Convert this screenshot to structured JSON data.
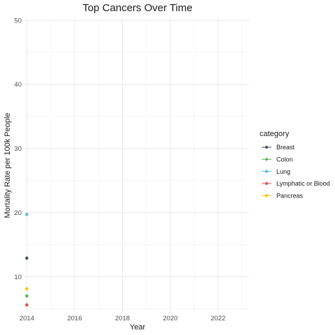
{
  "chart_data": {
    "type": "scatter",
    "title": "Top Cancers Over Time",
    "xlabel": "Year",
    "ylabel": "Mortality Rate per 100k People",
    "xlim": [
      2013.9,
      2023.3
    ],
    "ylim": [
      4.5,
      50
    ],
    "x_ticks": [
      2014,
      2016,
      2018,
      2020,
      2022
    ],
    "y_ticks": [
      10,
      20,
      30,
      40,
      50
    ],
    "grid": true,
    "legend_placement": "right",
    "legend_title": "category",
    "series": [
      {
        "name": "Breast",
        "color": "#44546a",
        "x": [
          2014
        ],
        "y": [
          12.9
        ]
      },
      {
        "name": "Colon",
        "color": "#5cb85c",
        "x": [
          2014
        ],
        "y": [
          7.0
        ]
      },
      {
        "name": "Lung",
        "color": "#5bc0de",
        "x": [
          2014
        ],
        "y": [
          19.7
        ]
      },
      {
        "name": "Lymphatic or Blood",
        "color": "#d9534f",
        "x": [
          2014
        ],
        "y": [
          5.6
        ]
      },
      {
        "name": "Pancreas",
        "color": "#ffc107",
        "x": [
          2014
        ],
        "y": [
          8.1
        ]
      }
    ]
  }
}
